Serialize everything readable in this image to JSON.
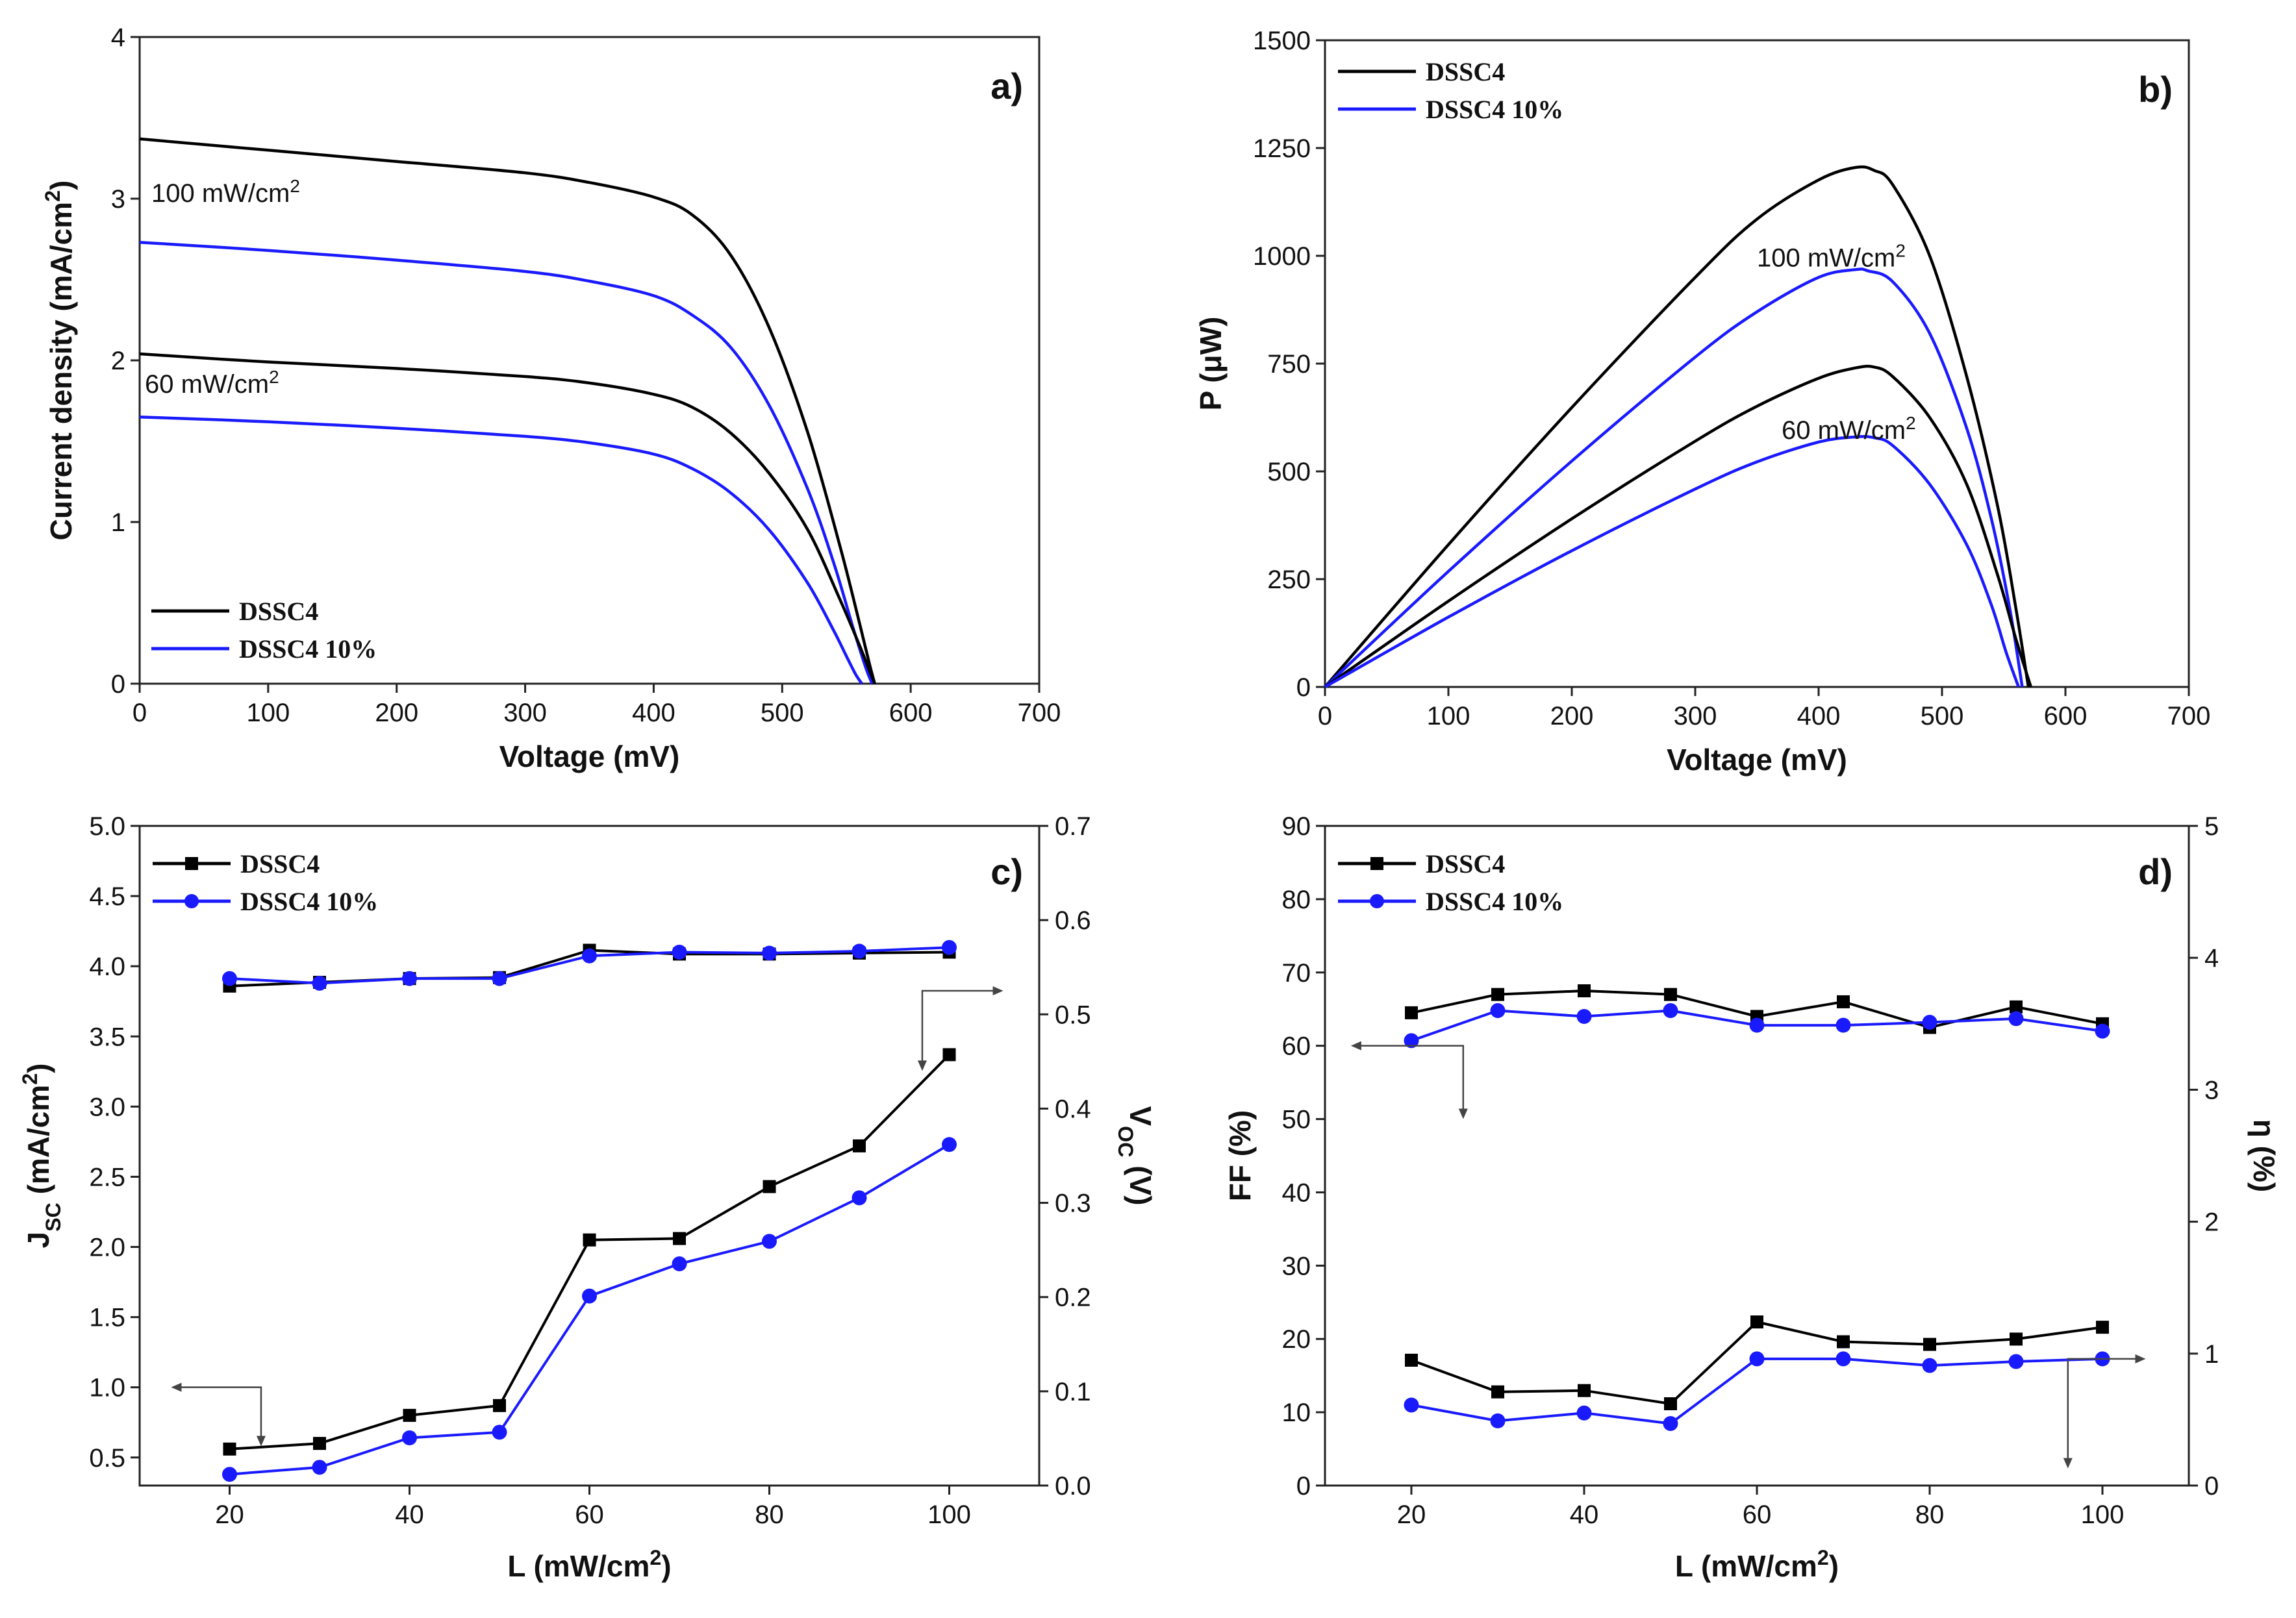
{
  "colors": {
    "black_series": "#000000",
    "blue_series": "#1a1aff",
    "axis": "#222222",
    "background": "#ffffff"
  },
  "chart_data": [
    {
      "id": "a",
      "type": "line",
      "panel_label": "a)",
      "xlabel": "Voltage (mV)",
      "ylabel": "Current density (mA/cm²)",
      "xlim": [
        0,
        700
      ],
      "ylim": [
        0,
        4
      ],
      "xticks": [
        "0",
        "100",
        "200",
        "300",
        "400",
        "500",
        "600",
        "700"
      ],
      "yticks": [
        "0",
        "1",
        "2",
        "3",
        "4"
      ],
      "legend": [
        "DSSC4",
        "DSSC4 10%"
      ],
      "legend_position": "bottom-left",
      "annotations": [
        "100 mW/cm²",
        "60 mW/cm²"
      ],
      "series": [
        {
          "name": "DSSC4",
          "irradiance": "100 mW/cm²",
          "color": "#000000",
          "x": [
            0,
            100,
            200,
            300,
            350,
            400,
            430,
            460,
            490,
            520,
            545,
            560,
            568,
            572
          ],
          "y": [
            3.37,
            3.3,
            3.23,
            3.16,
            3.1,
            3.01,
            2.9,
            2.65,
            2.2,
            1.55,
            0.85,
            0.38,
            0.12,
            0.0
          ]
        },
        {
          "name": "DSSC4 10%",
          "irradiance": "100 mW/cm²",
          "color": "#1a1aff",
          "x": [
            0,
            100,
            200,
            300,
            350,
            400,
            430,
            460,
            490,
            520,
            540,
            555,
            565,
            570
          ],
          "y": [
            2.73,
            2.68,
            2.62,
            2.55,
            2.49,
            2.4,
            2.28,
            2.08,
            1.72,
            1.2,
            0.75,
            0.35,
            0.1,
            0.0
          ]
        },
        {
          "name": "DSSC4",
          "irradiance": "60 mW/cm²",
          "color": "#000000",
          "x": [
            0,
            100,
            200,
            300,
            350,
            400,
            430,
            460,
            490,
            520,
            545,
            560,
            568,
            572
          ],
          "y": [
            2.04,
            1.99,
            1.95,
            1.9,
            1.86,
            1.79,
            1.71,
            1.55,
            1.3,
            0.95,
            0.52,
            0.24,
            0.08,
            0.0
          ]
        },
        {
          "name": "DSSC4 10%",
          "irradiance": "60 mW/cm²",
          "color": "#1a1aff",
          "x": [
            0,
            100,
            200,
            300,
            350,
            400,
            430,
            460,
            490,
            520,
            540,
            550,
            557,
            562
          ],
          "y": [
            1.65,
            1.62,
            1.58,
            1.53,
            1.49,
            1.42,
            1.33,
            1.18,
            0.95,
            0.62,
            0.33,
            0.17,
            0.06,
            0.0
          ]
        }
      ]
    },
    {
      "id": "b",
      "type": "line",
      "panel_label": "b)",
      "xlabel": "Voltage (mV)",
      "ylabel": "P (μW)",
      "xlim": [
        0,
        700
      ],
      "ylim": [
        0,
        1500
      ],
      "xticks": [
        "0",
        "100",
        "200",
        "300",
        "400",
        "500",
        "600",
        "700"
      ],
      "yticks": [
        "0",
        "250",
        "500",
        "750",
        "1000",
        "1250",
        "1500"
      ],
      "legend": [
        "DSSC4",
        "DSSC4 10%"
      ],
      "legend_position": "top-left",
      "annotations": [
        "100 mW/cm²",
        "60 mW/cm²"
      ],
      "series": [
        {
          "name": "DSSC4",
          "irradiance": "100 mW/cm²",
          "color": "#000000",
          "x": [
            0,
            100,
            200,
            300,
            350,
            400,
            430,
            445,
            460,
            490,
            520,
            545,
            560,
            570
          ],
          "y": [
            0,
            330,
            648,
            950,
            1085,
            1176,
            1205,
            1198,
            1165,
            1000,
            720,
            420,
            180,
            0
          ]
        },
        {
          "name": "DSSC4 10%",
          "irradiance": "100 mW/cm²",
          "color": "#1a1aff",
          "x": [
            0,
            100,
            200,
            300,
            350,
            400,
            430,
            440,
            460,
            490,
            520,
            540,
            555,
            565
          ],
          "y": [
            0,
            268,
            524,
            765,
            870,
            950,
            968,
            965,
            940,
            820,
            600,
            390,
            180,
            0
          ]
        },
        {
          "name": "DSSC4",
          "irradiance": "60 mW/cm²",
          "color": "#000000",
          "x": [
            0,
            100,
            200,
            300,
            350,
            400,
            430,
            445,
            460,
            490,
            520,
            545,
            560,
            572
          ],
          "y": [
            0,
            199,
            390,
            570,
            651,
            716,
            740,
            742,
            720,
            625,
            470,
            260,
            110,
            0
          ]
        },
        {
          "name": "DSSC4 10%",
          "irradiance": "60 mW/cm²",
          "color": "#1a1aff",
          "x": [
            0,
            100,
            200,
            300,
            350,
            400,
            430,
            445,
            460,
            490,
            520,
            540,
            552,
            562
          ],
          "y": [
            0,
            162,
            316,
            459,
            522,
            568,
            580,
            578,
            560,
            470,
            330,
            190,
            80,
            0
          ]
        }
      ]
    },
    {
      "id": "c",
      "type": "line",
      "panel_label": "c)",
      "xlabel": "L (mW/cm²)",
      "ylabel": "Jsc (mA/cm²)",
      "ylabel_right": "Voc (V)",
      "xlim": [
        10,
        110
      ],
      "ylim": [
        0.3,
        5.0
      ],
      "ylim_right": [
        0.0,
        0.7
      ],
      "xticks": [
        "20",
        "40",
        "60",
        "80",
        "100"
      ],
      "yticks": [
        "0.5",
        "1.0",
        "1.5",
        "2.0",
        "2.5",
        "3.0",
        "3.5",
        "4.0",
        "4.5",
        "5.0"
      ],
      "yticks_right": [
        "0.0",
        "0.1",
        "0.2",
        "0.3",
        "0.4",
        "0.5",
        "0.6",
        "0.7"
      ],
      "legend": [
        "DSSC4",
        "DSSC4 10%"
      ],
      "legend_position": "top-left",
      "x": [
        20,
        30,
        40,
        50,
        60,
        70,
        80,
        90,
        100
      ],
      "series": [
        {
          "name": "DSSC4",
          "quantity": "Jsc",
          "axis": "left",
          "color": "#000000",
          "marker": "square",
          "values": [
            0.56,
            0.6,
            0.8,
            0.87,
            2.05,
            2.06,
            2.43,
            2.72,
            3.37
          ]
        },
        {
          "name": "DSSC4 10%",
          "quantity": "Jsc",
          "axis": "left",
          "color": "#1a1aff",
          "marker": "circle",
          "values": [
            0.38,
            0.43,
            0.64,
            0.68,
            1.65,
            1.88,
            2.04,
            2.35,
            2.73
          ]
        },
        {
          "name": "DSSC4",
          "quantity": "Voc",
          "axis": "right",
          "color": "#000000",
          "marker": "square",
          "values": [
            0.53,
            0.534,
            0.538,
            0.539,
            0.568,
            0.564,
            0.564,
            0.565,
            0.566
          ]
        },
        {
          "name": "DSSC4 10%",
          "quantity": "Voc",
          "axis": "right",
          "color": "#1a1aff",
          "marker": "circle",
          "values": [
            0.538,
            0.533,
            0.538,
            0.538,
            0.562,
            0.566,
            0.565,
            0.567,
            0.571
          ]
        }
      ]
    },
    {
      "id": "d",
      "type": "line",
      "panel_label": "d)",
      "xlabel": "L (mW/cm²)",
      "ylabel": "FF (%)",
      "ylabel_right": "η (%)",
      "xlim": [
        10,
        110
      ],
      "ylim": [
        0,
        90
      ],
      "ylim_right": [
        0,
        5
      ],
      "xticks": [
        "20",
        "40",
        "60",
        "80",
        "100"
      ],
      "yticks": [
        "0",
        "10",
        "20",
        "30",
        "40",
        "50",
        "60",
        "70",
        "80",
        "90"
      ],
      "yticks_right": [
        "0",
        "1",
        "2",
        "3",
        "4",
        "5"
      ],
      "legend": [
        "DSSC4",
        "DSSC4 10%"
      ],
      "legend_position": "top-left",
      "x": [
        20,
        30,
        40,
        50,
        60,
        70,
        80,
        90,
        100
      ],
      "series": [
        {
          "name": "DSSC4",
          "quantity": "FF",
          "axis": "left",
          "color": "#000000",
          "marker": "square",
          "values": [
            64.5,
            67.0,
            67.5,
            67.0,
            64.0,
            66.0,
            62.5,
            65.3,
            63.0
          ]
        },
        {
          "name": "DSSC4 10%",
          "quantity": "FF",
          "axis": "left",
          "color": "#1a1aff",
          "marker": "circle",
          "values": [
            60.7,
            64.8,
            64.0,
            64.8,
            62.8,
            62.8,
            63.2,
            63.7,
            62.0
          ]
        },
        {
          "name": "DSSC4",
          "quantity": "η",
          "axis": "right",
          "color": "#000000",
          "marker": "square",
          "values": [
            0.95,
            0.71,
            0.72,
            0.62,
            1.24,
            1.09,
            1.07,
            1.11,
            1.2
          ]
        },
        {
          "name": "DSSC4 10%",
          "quantity": "η",
          "axis": "right",
          "color": "#1a1aff",
          "marker": "circle",
          "values": [
            0.61,
            0.49,
            0.55,
            0.47,
            0.96,
            0.96,
            0.91,
            0.94,
            0.96
          ]
        }
      ]
    }
  ]
}
